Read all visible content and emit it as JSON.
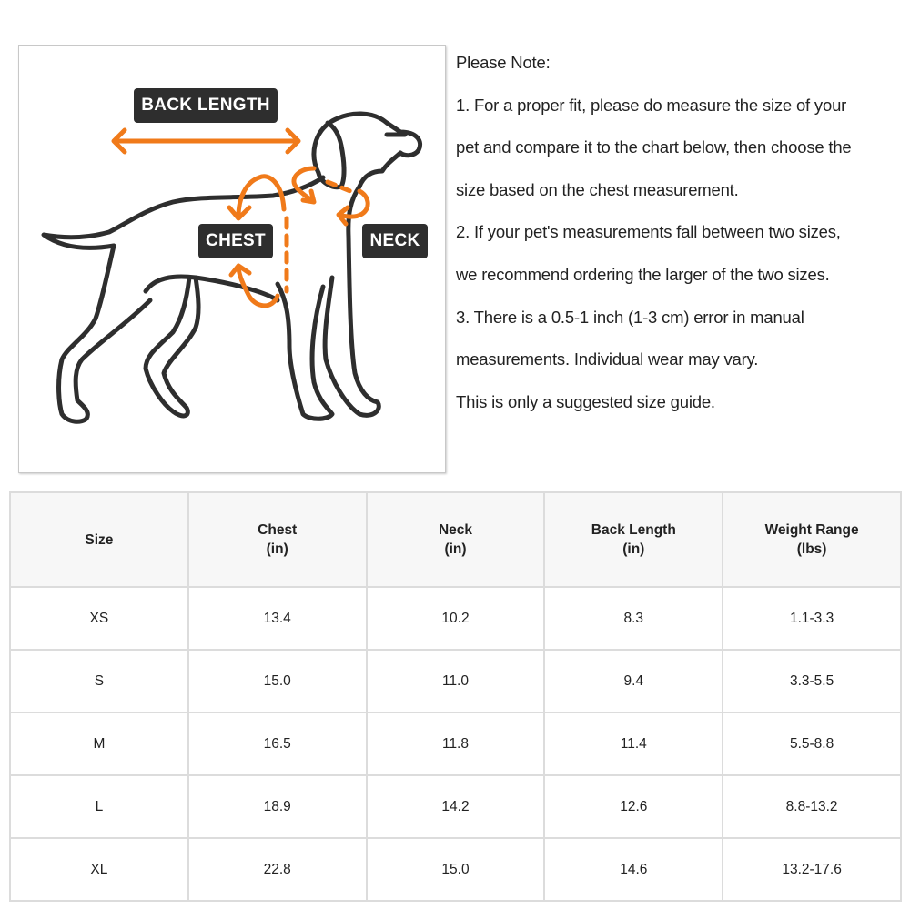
{
  "figure": {
    "labels": {
      "back_length": "BACK LENGTH",
      "chest": "CHEST",
      "neck": "NECK"
    },
    "colors": {
      "outline": "#2e2e2e",
      "arrow": "#f07a1a",
      "tag_bg": "#2e2e2e"
    },
    "icon": "dog-measurement-illustration"
  },
  "note": {
    "lines": [
      "Please Note:",
      "1. For a proper fit, please do measure the size of your",
      "pet and compare it to the chart below, then choose the",
      "size based on the chest measurement.",
      "2. If your pet's measurements fall between two sizes,",
      "we recommend ordering the larger of the two sizes.",
      "3. There is a 0.5-1 inch (1-3 cm) error in manual",
      "measurements. Individual wear may vary.",
      "This is only a suggested size guide."
    ]
  },
  "table": {
    "headers": [
      {
        "name": "Size",
        "unit": ""
      },
      {
        "name": "Chest",
        "unit": "(in)"
      },
      {
        "name": "Neck",
        "unit": "(in)"
      },
      {
        "name": "Back Length",
        "unit": "(in)"
      },
      {
        "name": "Weight Range",
        "unit": "(lbs)"
      }
    ],
    "rows": [
      [
        "XS",
        "13.4",
        "10.2",
        "8.3",
        "1.1-3.3"
      ],
      [
        "S",
        "15.0",
        "11.0",
        "9.4",
        "3.3-5.5"
      ],
      [
        "M",
        "16.5",
        "11.8",
        "11.4",
        "5.5-8.8"
      ],
      [
        "L",
        "18.9",
        "14.2",
        "12.6",
        "8.8-13.2"
      ],
      [
        "XL",
        "22.8",
        "15.0",
        "14.6",
        "13.2-17.6"
      ]
    ]
  }
}
